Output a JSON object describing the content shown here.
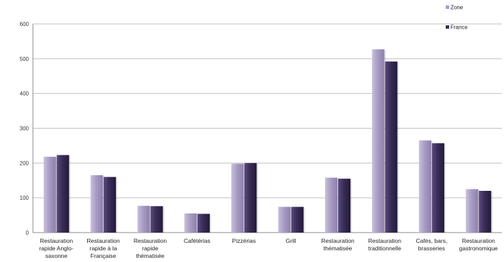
{
  "chart_data": {
    "type": "bar",
    "title": "",
    "xlabel": "",
    "ylabel": "",
    "ylim": [
      0,
      600
    ],
    "yticks": [
      "0",
      "100",
      "200",
      "300",
      "400",
      "500",
      "600"
    ],
    "grid": true,
    "legend_position": "top-right",
    "categories": [
      [
        "Restauration",
        "rapide Anglo-",
        "saxonne"
      ],
      [
        "Restauration",
        "rapide à la",
        "Française"
      ],
      [
        "Restauration",
        "rapide",
        "thématisée"
      ],
      [
        "Cafétérias"
      ],
      [
        "Pizzérias"
      ],
      [
        "Grill"
      ],
      [
        "Restauration",
        "thématisée"
      ],
      [
        "Restauration",
        "traditionnelle"
      ],
      [
        "Cafés, bars,",
        "brasseries"
      ],
      [
        "Restauration",
        "gastronomique"
      ]
    ],
    "series": [
      {
        "name": "Zone",
        "color": "#a89cc4",
        "values": [
          218,
          165,
          77,
          55,
          198,
          74,
          158,
          527,
          265,
          125
        ]
      },
      {
        "name": "France",
        "color": "#3a2d57",
        "values": [
          223,
          160,
          76,
          54,
          200,
          74,
          155,
          492,
          257,
          120
        ]
      }
    ]
  }
}
